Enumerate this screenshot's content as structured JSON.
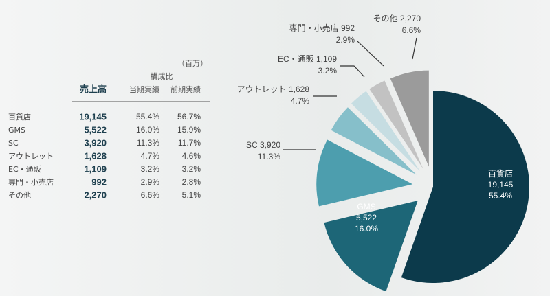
{
  "table": {
    "unit": "（百万）",
    "group_header": "構成比",
    "columns": [
      "売上高",
      "当期実績",
      "前期実績"
    ],
    "previous_share_labels": [
      "56.7%",
      "15.9%",
      "11.7%",
      "4.6%",
      "3.2%",
      "2.8%",
      "5.1%"
    ]
  },
  "chart_data": {
    "type": "pie",
    "categories": [
      "百貨店",
      "GMS",
      "SC",
      "アウトレット",
      "EC・通販",
      "専門・小売店",
      "その他"
    ],
    "values": [
      19145,
      5522,
      3920,
      1628,
      1109,
      992,
      2270
    ],
    "value_labels": [
      "19,145",
      "5,522",
      "3,920",
      "1,628",
      "1,109",
      "992",
      "2,270"
    ],
    "shares": [
      55.4,
      16.0,
      11.3,
      4.7,
      3.2,
      2.9,
      6.6
    ],
    "share_labels": [
      "55.4%",
      "16.0%",
      "11.3%",
      "4.7%",
      "3.2%",
      "2.9%",
      "6.6%"
    ],
    "colors": [
      "#0c3a4b",
      "#1d6677",
      "#4d9eae",
      "#86bfca",
      "#c6dde2",
      "#c2c2c2",
      "#9b9b9b"
    ]
  }
}
